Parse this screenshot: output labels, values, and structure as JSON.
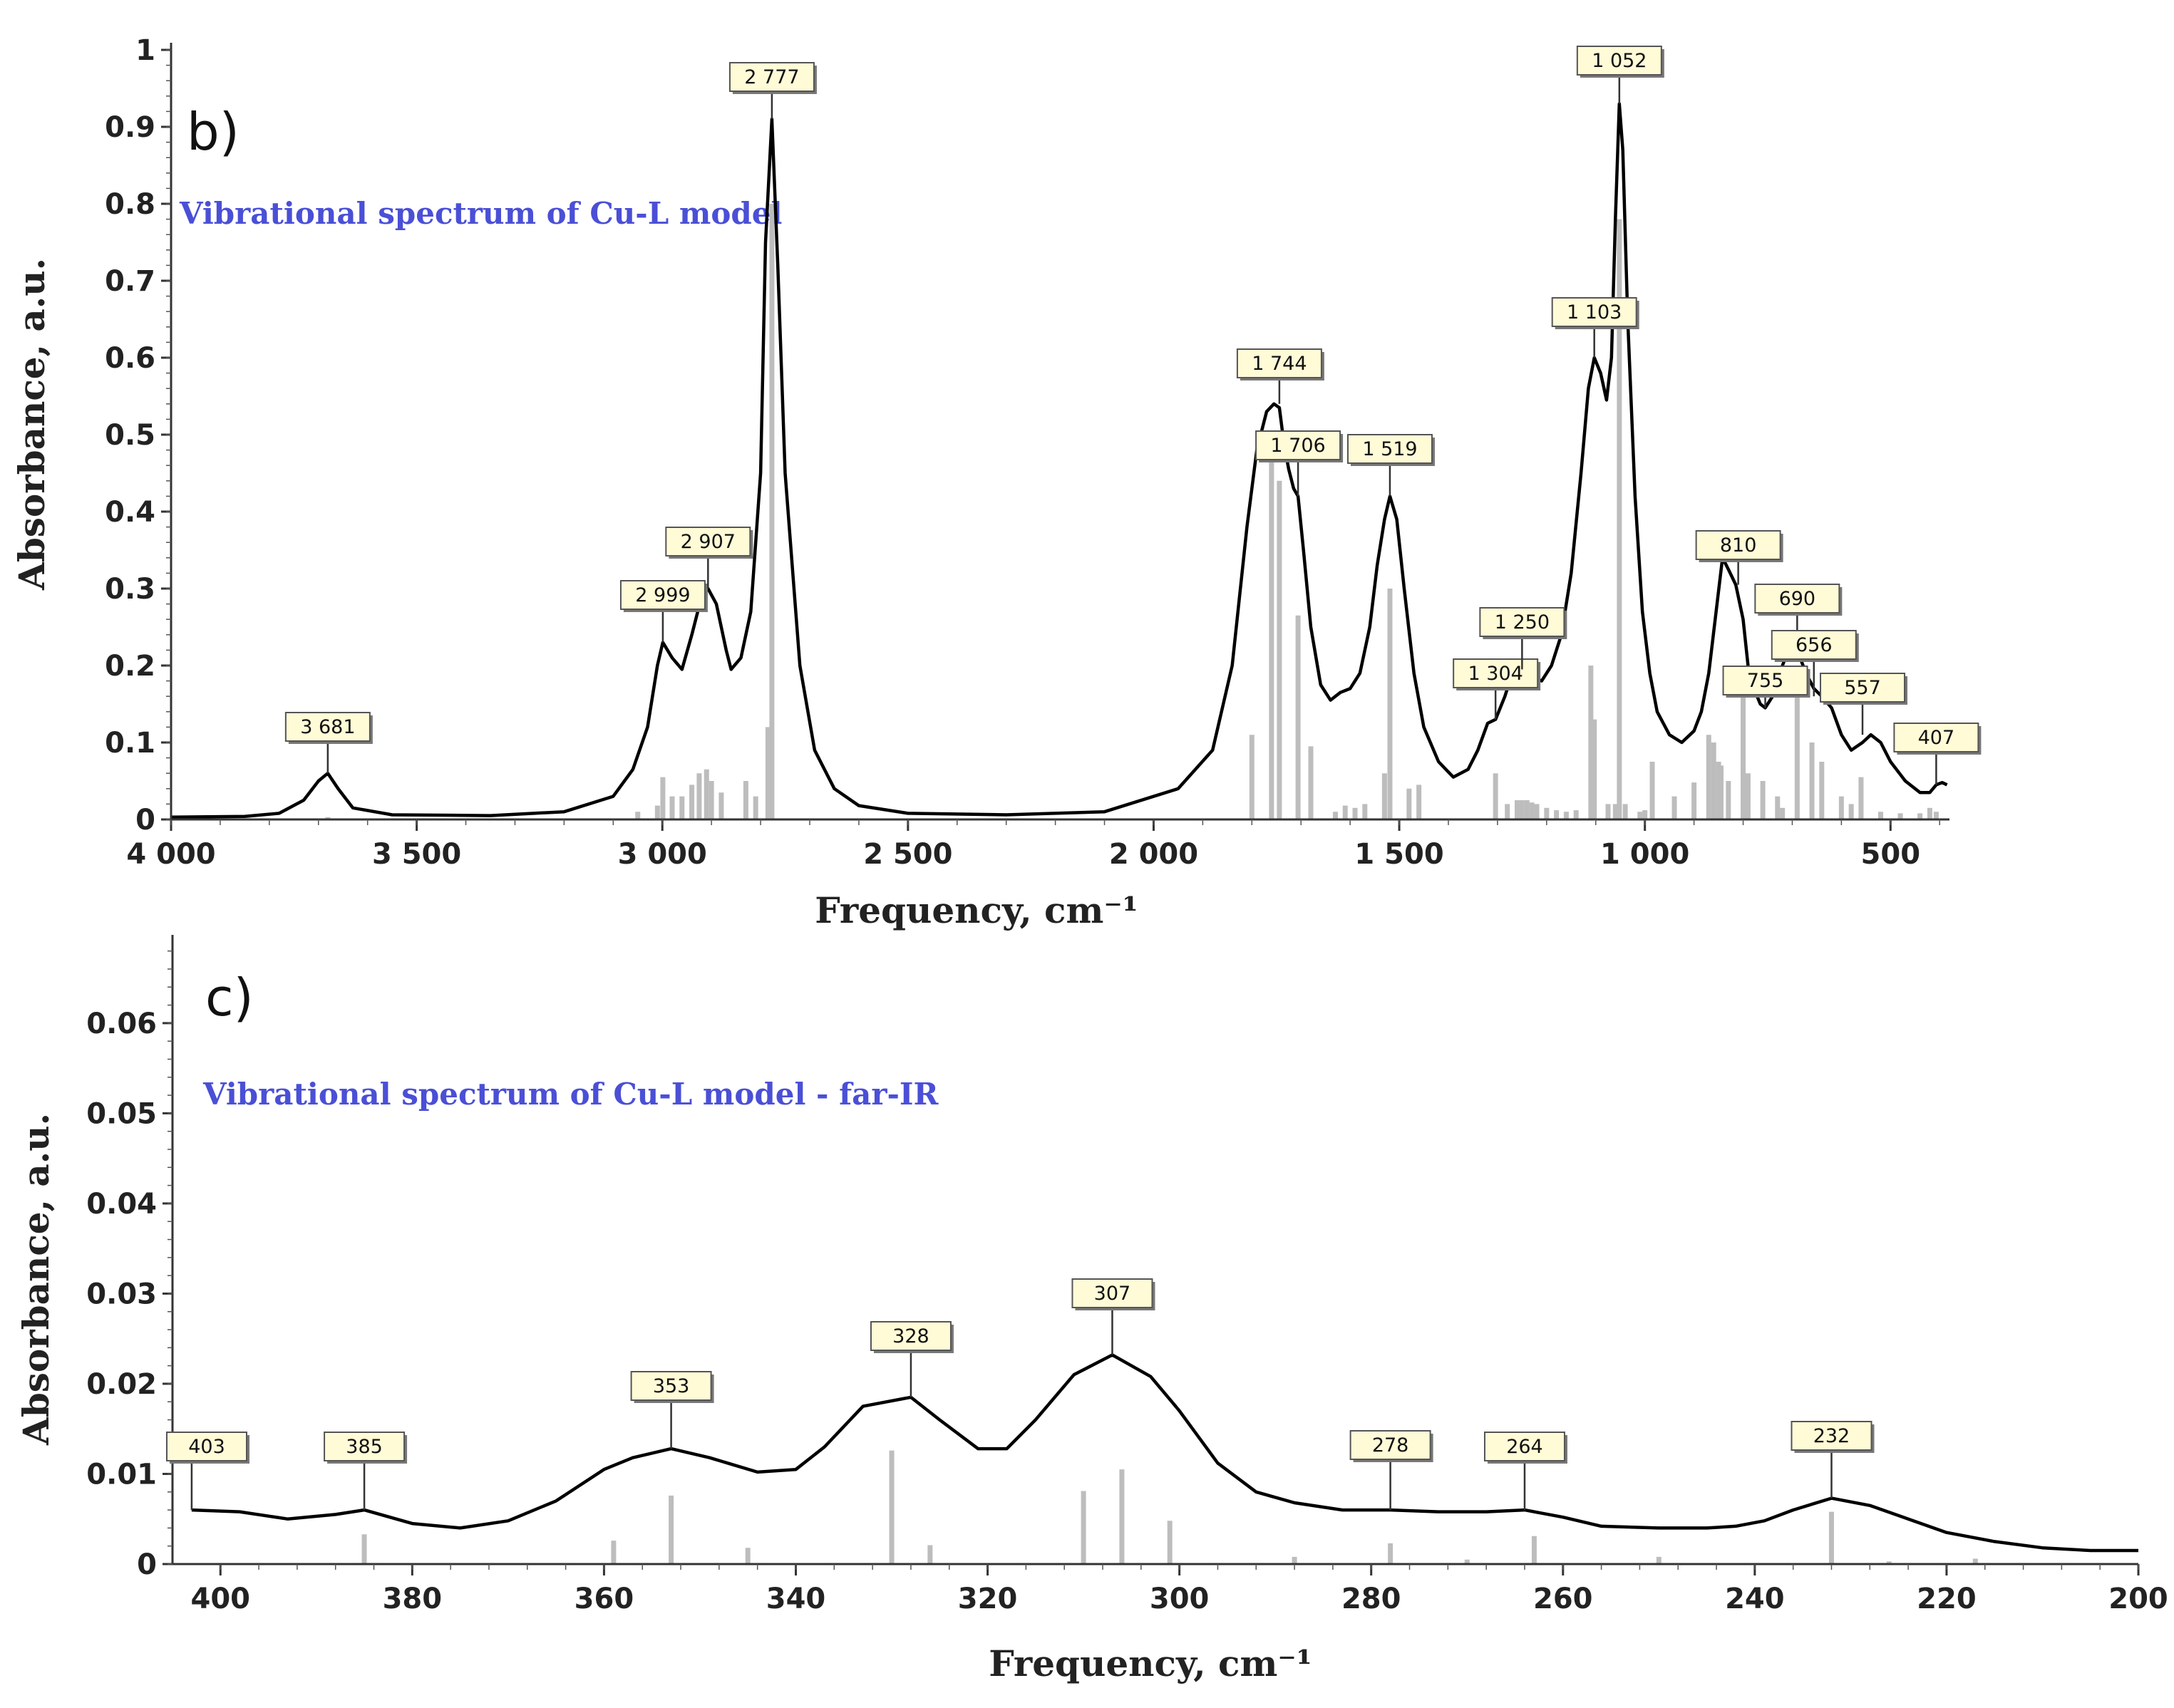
{
  "chart_data": [
    {
      "type": "line",
      "panel_label": "b)",
      "subtitle": "Vibrational spectrum of Cu-L model",
      "xlabel": "Frequency, cm⁻¹",
      "ylabel": "Absorbance, a.u.",
      "xlim": [
        4000,
        380
      ],
      "ylim": [
        0,
        1
      ],
      "x_ticks": [
        4000,
        3500,
        3000,
        2500,
        2000,
        1500,
        1000,
        500
      ],
      "x_tick_labels": [
        "4 000",
        "3 500",
        "3 000",
        "2 500",
        "2 000",
        "1 500",
        "1 000",
        "500"
      ],
      "y_ticks": [
        0,
        0.1,
        0.2,
        0.3,
        0.4,
        0.5,
        0.6,
        0.7,
        0.8,
        0.9,
        1
      ],
      "y_tick_labels": [
        "0",
        "0.1",
        "0.2",
        "0.3",
        "0.4",
        "0.5",
        "0.6",
        "0.7",
        "0.8",
        "0.9",
        "1"
      ],
      "series": [
        {
          "name": "spectrum",
          "x": [
            4000,
            3850,
            3780,
            3730,
            3700,
            3681,
            3660,
            3630,
            3550,
            3350,
            3200,
            3100,
            3060,
            3030,
            3010,
            2999,
            2980,
            2960,
            2940,
            2920,
            2907,
            2890,
            2870,
            2860,
            2840,
            2820,
            2800,
            2790,
            2777,
            2765,
            2750,
            2720,
            2690,
            2650,
            2600,
            2500,
            2300,
            2100,
            1950,
            1880,
            1840,
            1810,
            1790,
            1770,
            1755,
            1744,
            1735,
            1725,
            1715,
            1706,
            1695,
            1680,
            1660,
            1640,
            1620,
            1600,
            1580,
            1560,
            1545,
            1530,
            1519,
            1505,
            1490,
            1470,
            1450,
            1420,
            1390,
            1360,
            1340,
            1320,
            1304,
            1285,
            1270,
            1250,
            1230,
            1210,
            1190,
            1170,
            1150,
            1130,
            1115,
            1103,
            1090,
            1078,
            1068,
            1060,
            1052,
            1045,
            1035,
            1020,
            1005,
            990,
            975,
            950,
            925,
            900,
            885,
            870,
            855,
            842,
            830,
            815,
            800,
            790,
            778,
            765,
            755,
            740,
            720,
            705,
            690,
            672,
            656,
            640,
            620,
            600,
            580,
            557,
            540,
            520,
            500,
            470,
            440,
            420,
            407,
            395,
            385
          ],
          "y": [
            0.003,
            0.004,
            0.008,
            0.025,
            0.05,
            0.06,
            0.04,
            0.015,
            0.006,
            0.005,
            0.01,
            0.03,
            0.065,
            0.12,
            0.2,
            0.23,
            0.21,
            0.195,
            0.24,
            0.29,
            0.3,
            0.28,
            0.22,
            0.195,
            0.21,
            0.27,
            0.45,
            0.75,
            0.91,
            0.72,
            0.45,
            0.2,
            0.09,
            0.04,
            0.018,
            0.008,
            0.006,
            0.01,
            0.04,
            0.09,
            0.2,
            0.38,
            0.48,
            0.53,
            0.54,
            0.535,
            0.49,
            0.455,
            0.43,
            0.42,
            0.35,
            0.25,
            0.175,
            0.155,
            0.165,
            0.17,
            0.19,
            0.25,
            0.33,
            0.39,
            0.42,
            0.39,
            0.3,
            0.19,
            0.12,
            0.075,
            0.055,
            0.065,
            0.09,
            0.125,
            0.13,
            0.16,
            0.19,
            0.195,
            0.185,
            0.18,
            0.2,
            0.24,
            0.32,
            0.45,
            0.56,
            0.6,
            0.58,
            0.545,
            0.6,
            0.78,
            0.93,
            0.87,
            0.65,
            0.42,
            0.27,
            0.19,
            0.14,
            0.11,
            0.1,
            0.115,
            0.14,
            0.19,
            0.27,
            0.34,
            0.325,
            0.305,
            0.26,
            0.2,
            0.17,
            0.15,
            0.145,
            0.16,
            0.2,
            0.225,
            0.22,
            0.19,
            0.17,
            0.16,
            0.145,
            0.11,
            0.09,
            0.1,
            0.11,
            0.1,
            0.075,
            0.05,
            0.035,
            0.035,
            0.045,
            0.048,
            0.045
          ]
        }
      ],
      "sticks": {
        "x": [
          3681,
          3050,
          3010,
          2999,
          2980,
          2960,
          2940,
          2925,
          2910,
          2900,
          2880,
          2830,
          2810,
          2785,
          2777,
          1800,
          1760,
          1744,
          1706,
          1680,
          1630,
          1610,
          1590,
          1570,
          1530,
          1519,
          1480,
          1460,
          1304,
          1280,
          1260,
          1250,
          1240,
          1230,
          1220,
          1200,
          1180,
          1160,
          1140,
          1110,
          1103,
          1075,
          1060,
          1052,
          1040,
          1010,
          1000,
          985,
          940,
          900,
          870,
          860,
          850,
          845,
          830,
          800,
          790,
          760,
          730,
          720,
          690,
          660,
          640,
          600,
          580,
          560,
          520,
          480,
          440,
          420,
          407
        ],
        "y": [
          0.003,
          0.01,
          0.018,
          0.055,
          0.03,
          0.03,
          0.045,
          0.06,
          0.065,
          0.05,
          0.035,
          0.05,
          0.03,
          0.12,
          0.8,
          0.11,
          0.48,
          0.44,
          0.265,
          0.095,
          0.01,
          0.018,
          0.015,
          0.02,
          0.06,
          0.3,
          0.04,
          0.045,
          0.06,
          0.02,
          0.025,
          0.025,
          0.025,
          0.022,
          0.02,
          0.015,
          0.012,
          0.01,
          0.012,
          0.2,
          0.13,
          0.02,
          0.02,
          0.78,
          0.02,
          0.01,
          0.012,
          0.075,
          0.03,
          0.048,
          0.11,
          0.1,
          0.075,
          0.07,
          0.05,
          0.16,
          0.06,
          0.05,
          0.03,
          0.015,
          0.16,
          0.1,
          0.075,
          0.03,
          0.02,
          0.055,
          0.01,
          0.008,
          0.008,
          0.015,
          0.01
        ]
      },
      "peak_labels": [
        {
          "text": "3 681",
          "x": 3681,
          "y": 0.06
        },
        {
          "text": "2 999",
          "x": 2999,
          "y": 0.23
        },
        {
          "text": "2 907",
          "x": 2907,
          "y": 0.3
        },
        {
          "text": "2 777",
          "x": 2777,
          "y": 0.91
        },
        {
          "text": "1 744",
          "x": 1744,
          "y": 0.54
        },
        {
          "text": "1 706",
          "x": 1706,
          "y": 0.42
        },
        {
          "text": "1 519",
          "x": 1519,
          "y": 0.42
        },
        {
          "text": "1 304",
          "x": 1304,
          "y": 0.13
        },
        {
          "text": "1 250",
          "x": 1250,
          "y": 0.195
        },
        {
          "text": "1 103",
          "x": 1103,
          "y": 0.6
        },
        {
          "text": "1 052",
          "x": 1052,
          "y": 0.93
        },
        {
          "text": "810",
          "x": 810,
          "y": 0.305
        },
        {
          "text": "755",
          "x": 755,
          "y": 0.145
        },
        {
          "text": "690",
          "x": 690,
          "y": 0.225
        },
        {
          "text": "656",
          "x": 656,
          "y": 0.16
        },
        {
          "text": "557",
          "x": 557,
          "y": 0.11
        },
        {
          "text": "407",
          "x": 407,
          "y": 0.045
        }
      ]
    },
    {
      "type": "line",
      "panel_label": "c)",
      "subtitle": "Vibrational spectrum of Cu-L model - far-IR",
      "xlabel": "Frequency, cm⁻¹",
      "ylabel": "Absorbance, a.u.",
      "xlim": [
        405,
        200
      ],
      "ylim": [
        0,
        0.069
      ],
      "x_ticks": [
        400,
        380,
        360,
        340,
        320,
        300,
        280,
        260,
        240,
        220,
        200
      ],
      "x_tick_labels": [
        "400",
        "380",
        "360",
        "340",
        "320",
        "300",
        "280",
        "260",
        "240",
        "220",
        "200"
      ],
      "y_ticks": [
        0,
        0.01,
        0.02,
        0.03,
        0.04,
        0.05,
        0.06
      ],
      "y_tick_labels": [
        "0",
        "0.01",
        "0.02",
        "0.03",
        "0.04",
        "0.05",
        "0.06"
      ],
      "series": [
        {
          "name": "spectrum",
          "x": [
            403,
            398,
            393,
            388,
            385,
            380,
            375,
            370,
            365,
            360,
            357,
            353,
            349,
            344,
            340,
            337,
            333,
            328,
            325,
            321,
            318,
            315,
            311,
            307,
            303,
            300,
            296,
            292,
            288,
            283,
            278,
            273,
            268,
            264,
            260,
            256,
            250,
            245,
            242,
            239,
            236,
            232,
            228,
            224,
            220,
            215,
            210,
            205,
            200
          ],
          "y": [
            0.006,
            0.0058,
            0.005,
            0.0055,
            0.006,
            0.0045,
            0.004,
            0.0048,
            0.007,
            0.0105,
            0.0118,
            0.0128,
            0.0118,
            0.0102,
            0.0105,
            0.013,
            0.0175,
            0.0185,
            0.016,
            0.0128,
            0.0128,
            0.016,
            0.021,
            0.0232,
            0.0208,
            0.017,
            0.0112,
            0.008,
            0.0068,
            0.006,
            0.006,
            0.0058,
            0.0058,
            0.006,
            0.0052,
            0.0042,
            0.004,
            0.004,
            0.0042,
            0.0048,
            0.006,
            0.0073,
            0.0065,
            0.005,
            0.0035,
            0.0025,
            0.0018,
            0.0015,
            0.0015
          ]
        }
      ],
      "sticks": {
        "x": [
          385,
          359,
          353,
          345,
          330,
          326,
          310,
          306,
          301,
          288,
          278,
          270,
          263,
          250,
          232,
          226,
          217
        ],
        "y": [
          0.0033,
          0.0026,
          0.0076,
          0.0018,
          0.0126,
          0.0021,
          0.0081,
          0.0105,
          0.0048,
          0.0008,
          0.0023,
          0.0005,
          0.0031,
          0.0008,
          0.0058,
          0.0003,
          0.0006
        ]
      },
      "peak_labels": [
        {
          "text": "403",
          "x": 403,
          "y": 0.006
        },
        {
          "text": "385",
          "x": 385,
          "y": 0.006
        },
        {
          "text": "353",
          "x": 353,
          "y": 0.0128
        },
        {
          "text": "328",
          "x": 328,
          "y": 0.0185
        },
        {
          "text": "307",
          "x": 307,
          "y": 0.0232
        },
        {
          "text": "278",
          "x": 278,
          "y": 0.006
        },
        {
          "text": "264",
          "x": 264,
          "y": 0.006
        },
        {
          "text": "232",
          "x": 232,
          "y": 0.0073
        }
      ]
    }
  ]
}
